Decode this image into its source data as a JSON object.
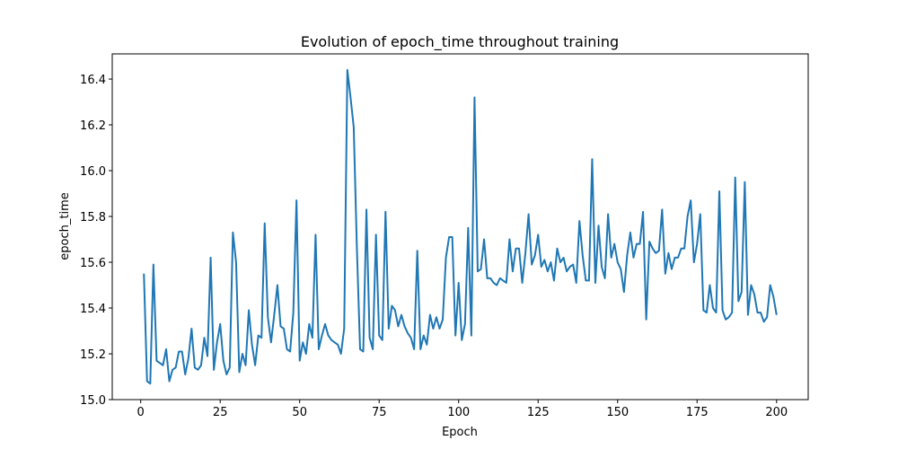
{
  "chart_data": {
    "type": "line",
    "title": "Evolution of epoch_time throughout training",
    "xlabel": "Epoch",
    "ylabel": "epoch_time",
    "color": "#1f77b4",
    "x": [
      1,
      2,
      3,
      4,
      5,
      6,
      7,
      8,
      9,
      10,
      11,
      12,
      13,
      14,
      15,
      16,
      17,
      18,
      19,
      20,
      21,
      22,
      23,
      24,
      25,
      26,
      27,
      28,
      29,
      30,
      31,
      32,
      33,
      34,
      35,
      36,
      37,
      38,
      39,
      40,
      41,
      42,
      43,
      44,
      45,
      46,
      47,
      48,
      49,
      50,
      51,
      52,
      53,
      54,
      55,
      56,
      57,
      58,
      59,
      60,
      61,
      62,
      63,
      64,
      65,
      66,
      67,
      68,
      69,
      70,
      71,
      72,
      73,
      74,
      75,
      76,
      77,
      78,
      79,
      80,
      81,
      82,
      83,
      84,
      85,
      86,
      87,
      88,
      89,
      90,
      91,
      92,
      93,
      94,
      95,
      96,
      97,
      98,
      99,
      100,
      101,
      102,
      103,
      104,
      105,
      106,
      107,
      108,
      109,
      110,
      111,
      112,
      113,
      114,
      115,
      116,
      117,
      118,
      119,
      120,
      121,
      122,
      123,
      124,
      125,
      126,
      127,
      128,
      129,
      130,
      131,
      132,
      133,
      134,
      135,
      136,
      137,
      138,
      139,
      140,
      141,
      142,
      143,
      144,
      145,
      146,
      147,
      148,
      149,
      150,
      151,
      152,
      153,
      154,
      155,
      156,
      157,
      158,
      159,
      160,
      161,
      162,
      163,
      164,
      165,
      166,
      167,
      168,
      169,
      170,
      171,
      172,
      173,
      174,
      175,
      176,
      177,
      178,
      179,
      180,
      181,
      182,
      183,
      184,
      185,
      186,
      187,
      188,
      189,
      190,
      191,
      192,
      193,
      194,
      195,
      196,
      197,
      198,
      199,
      200
    ],
    "values": [
      15.55,
      15.08,
      15.07,
      15.59,
      15.17,
      15.16,
      15.15,
      15.22,
      15.08,
      15.13,
      15.14,
      15.21,
      15.21,
      15.11,
      15.18,
      15.31,
      15.14,
      15.13,
      15.15,
      15.27,
      15.19,
      15.62,
      15.13,
      15.25,
      15.33,
      15.17,
      15.11,
      15.14,
      15.73,
      15.6,
      15.12,
      15.2,
      15.15,
      15.39,
      15.24,
      15.15,
      15.28,
      15.27,
      15.77,
      15.36,
      15.25,
      15.37,
      15.5,
      15.32,
      15.31,
      15.22,
      15.21,
      15.38,
      15.87,
      15.17,
      15.25,
      15.2,
      15.33,
      15.27,
      15.72,
      15.22,
      15.28,
      15.33,
      15.28,
      15.26,
      15.25,
      15.24,
      15.2,
      15.31,
      16.44,
      16.32,
      16.19,
      15.66,
      15.22,
      15.21,
      15.83,
      15.27,
      15.22,
      15.72,
      15.28,
      15.26,
      15.82,
      15.31,
      15.41,
      15.39,
      15.32,
      15.37,
      15.32,
      15.29,
      15.27,
      15.22,
      15.65,
      15.22,
      15.28,
      15.24,
      15.37,
      15.31,
      15.36,
      15.31,
      15.35,
      15.62,
      15.71,
      15.71,
      15.28,
      15.51,
      15.26,
      15.33,
      15.75,
      15.28,
      16.32,
      15.56,
      15.57,
      15.7,
      15.53,
      15.53,
      15.51,
      15.5,
      15.53,
      15.52,
      15.51,
      15.7,
      15.56,
      15.66,
      15.66,
      15.51,
      15.64,
      15.81,
      15.59,
      15.63,
      15.72,
      15.58,
      15.61,
      15.56,
      15.6,
      15.52,
      15.66,
      15.6,
      15.62,
      15.56,
      15.58,
      15.59,
      15.51,
      15.78,
      15.63,
      15.52,
      15.52,
      16.05,
      15.51,
      15.76,
      15.58,
      15.53,
      15.81,
      15.62,
      15.68,
      15.6,
      15.57,
      15.47,
      15.63,
      15.73,
      15.62,
      15.68,
      15.68,
      15.82,
      15.35,
      15.69,
      15.66,
      15.64,
      15.65,
      15.83,
      15.55,
      15.64,
      15.57,
      15.62,
      15.62,
      15.66,
      15.66,
      15.8,
      15.87,
      15.6,
      15.68,
      15.81,
      15.39,
      15.38,
      15.5,
      15.4,
      15.38,
      15.91,
      15.39,
      15.35,
      15.36,
      15.38,
      15.97,
      15.43,
      15.47,
      15.95,
      15.37,
      15.5,
      15.46,
      15.38,
      15.38,
      15.34,
      15.36,
      15.5,
      15.45,
      15.37
    ],
    "xlim": [
      -8.95,
      209.95
    ],
    "xticks": [
      0,
      25,
      50,
      75,
      100,
      125,
      150,
      175,
      200
    ],
    "ylim": [
      15.0,
      16.51
    ],
    "yticks": [
      {
        "value": 15,
        "label": "15.0"
      },
      15.2,
      15.4,
      15.6,
      15.8,
      {
        "value": 16,
        "label": "16.0"
      },
      16.2,
      16.4
    ]
  }
}
